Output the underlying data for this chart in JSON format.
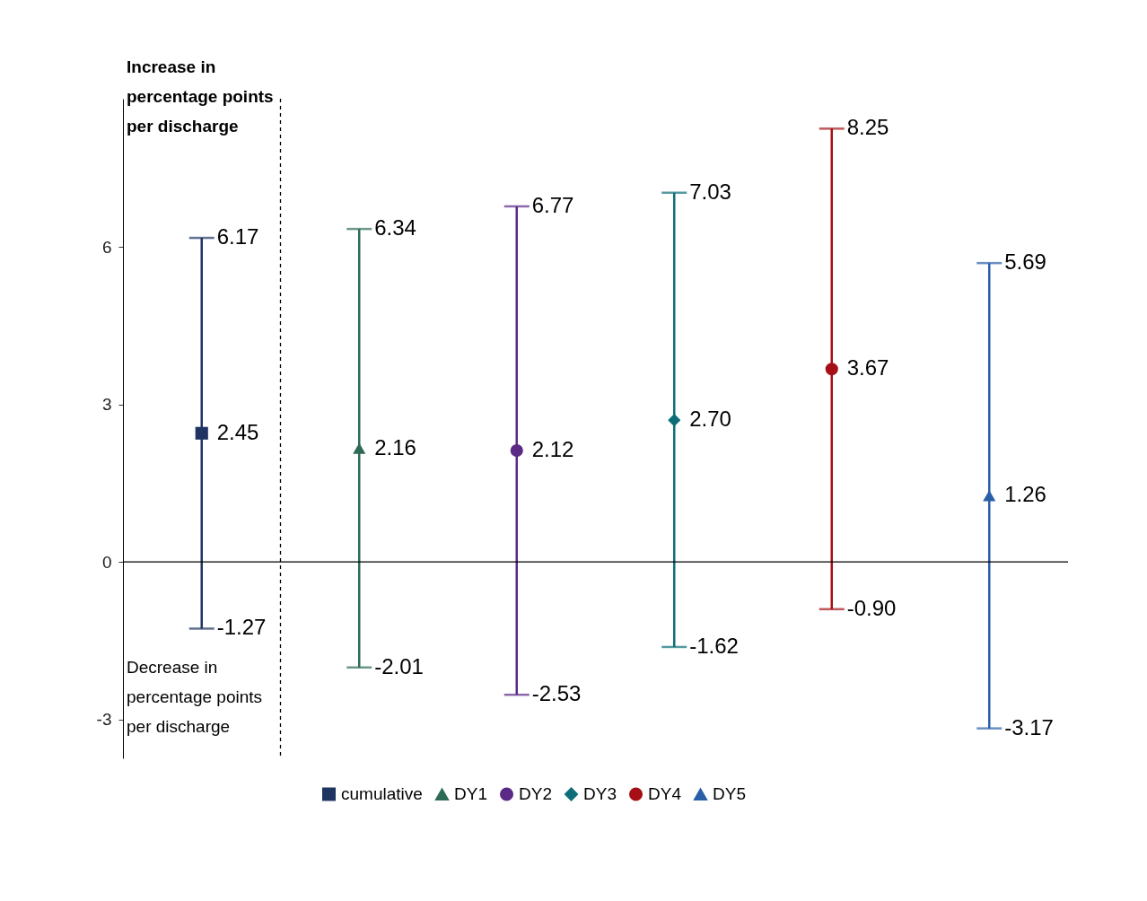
{
  "chart_data": {
    "type": "scatter",
    "categories": [
      null,
      null,
      null,
      null,
      null,
      null
    ],
    "ylim": [
      -3.74,
      8.82
    ],
    "yticks": [
      -3,
      0,
      3,
      6
    ],
    "grid": false,
    "legend": "bottom",
    "series": [
      {
        "name": "cumulative",
        "color": "#1f3461",
        "marker": "square",
        "values": [
          2.45,
          null,
          null,
          null,
          null,
          null
        ],
        "errors": [
          [
            -1.27,
            6.17
          ],
          null,
          null,
          null,
          null,
          null
        ],
        "value_labels": [
          "2.45",
          null,
          null,
          null,
          null,
          null
        ]
      },
      {
        "name": "DY1",
        "color": "#2e6b57",
        "marker": "triangle",
        "values": [
          null,
          2.16,
          null,
          null,
          null,
          null
        ],
        "errors": [
          null,
          [
            -2.01,
            6.34
          ],
          null,
          null,
          null,
          null
        ],
        "value_labels": [
          null,
          "2.16",
          null,
          null,
          null,
          null
        ]
      },
      {
        "name": "DY2",
        "color": "#5b2a86",
        "marker": "circle",
        "values": [
          null,
          null,
          2.12,
          null,
          null,
          null
        ],
        "errors": [
          null,
          null,
          [
            -2.53,
            6.77
          ],
          null,
          null,
          null
        ],
        "value_labels": [
          null,
          null,
          "2.12",
          null,
          null,
          null
        ]
      },
      {
        "name": "DY3",
        "color": "#0e6e78",
        "marker": "diamond",
        "values": [
          null,
          null,
          null,
          2.7,
          null,
          null
        ],
        "errors": [
          null,
          null,
          null,
          [
            -1.62,
            7.03
          ],
          null,
          null
        ],
        "value_labels": [
          null,
          null,
          null,
          "2.70",
          null,
          null
        ]
      },
      {
        "name": "DY4",
        "color": "#a50f15",
        "marker": "circle",
        "values": [
          null,
          null,
          null,
          null,
          3.67,
          null
        ],
        "errors": [
          null,
          null,
          null,
          null,
          [
            -0.9,
            8.25
          ],
          null
        ],
        "value_labels": [
          null,
          null,
          null,
          null,
          "3.67",
          null
        ]
      },
      {
        "name": "DY5",
        "color": "#2a5fa8",
        "marker": "triangle",
        "values": [
          null,
          null,
          null,
          null,
          null,
          1.26
        ],
        "errors": [
          null,
          null,
          null,
          null,
          null,
          [
            -3.17,
            5.69
          ]
        ],
        "value_labels": [
          null,
          null,
          null,
          null,
          null,
          "1.26"
        ]
      }
    ],
    "ref_lines": [
      {
        "axis": "y",
        "value": 0,
        "color": "#000000",
        "line_style": "solid"
      }
    ],
    "annotations": [
      "Increase in percentage points per discharge",
      "Decrease in percentage points per discharge",
      "-1.27",
      "6.17",
      "-2.01",
      "6.34",
      "-2.53",
      "6.77",
      "-1.62",
      "7.03",
      "-0.90",
      "8.25",
      "-3.17",
      "5.69"
    ]
  }
}
